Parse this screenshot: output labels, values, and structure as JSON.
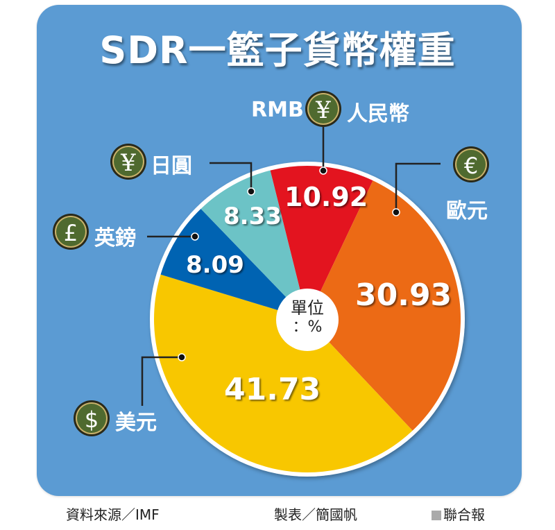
{
  "title": "SDR一籃子貨幣權重",
  "unit": {
    "line1": "單位",
    "line2": "：%"
  },
  "labels": {
    "rmb_prefix": "RMB",
    "rmb": "人民幣",
    "jpy": "日圓",
    "gbp": "英鎊",
    "eur": "歐元",
    "usd": "美元"
  },
  "coins": {
    "rmb": "¥",
    "jpy": "¥",
    "gbp": "£",
    "eur": "€",
    "usd": "$"
  },
  "values": {
    "rmb": "10.92",
    "eur": "30.93",
    "usd": "41.73",
    "gbp": "8.09",
    "jpy": "8.33"
  },
  "footer": {
    "source": "資料來源／IMF",
    "maker": "製表／簡國帆",
    "publisher": "聯合報"
  },
  "colors": {
    "background_panel": "#5b9bd3",
    "rmb": "#e3141f",
    "eur": "#ec6a15",
    "usd": "#f8c700",
    "gbp": "#0063b2",
    "jpy": "#6cc3c6",
    "coin": "#4f6a2f"
  },
  "chart_data": {
    "type": "pie",
    "title": "SDR一籃子貨幣權重",
    "unit": "%",
    "categories": [
      "人民幣 (RMB)",
      "歐元",
      "美元",
      "英鎊",
      "日圓"
    ],
    "values": [
      10.92,
      30.93,
      41.73,
      8.09,
      8.33
    ],
    "colors": [
      "#e3141f",
      "#ec6a15",
      "#f8c700",
      "#0063b2",
      "#6cc3c6"
    ],
    "start_angle_deg_from_top_clockwise": -14,
    "legend": "callout labels with currency coin icons",
    "source": "IMF"
  }
}
